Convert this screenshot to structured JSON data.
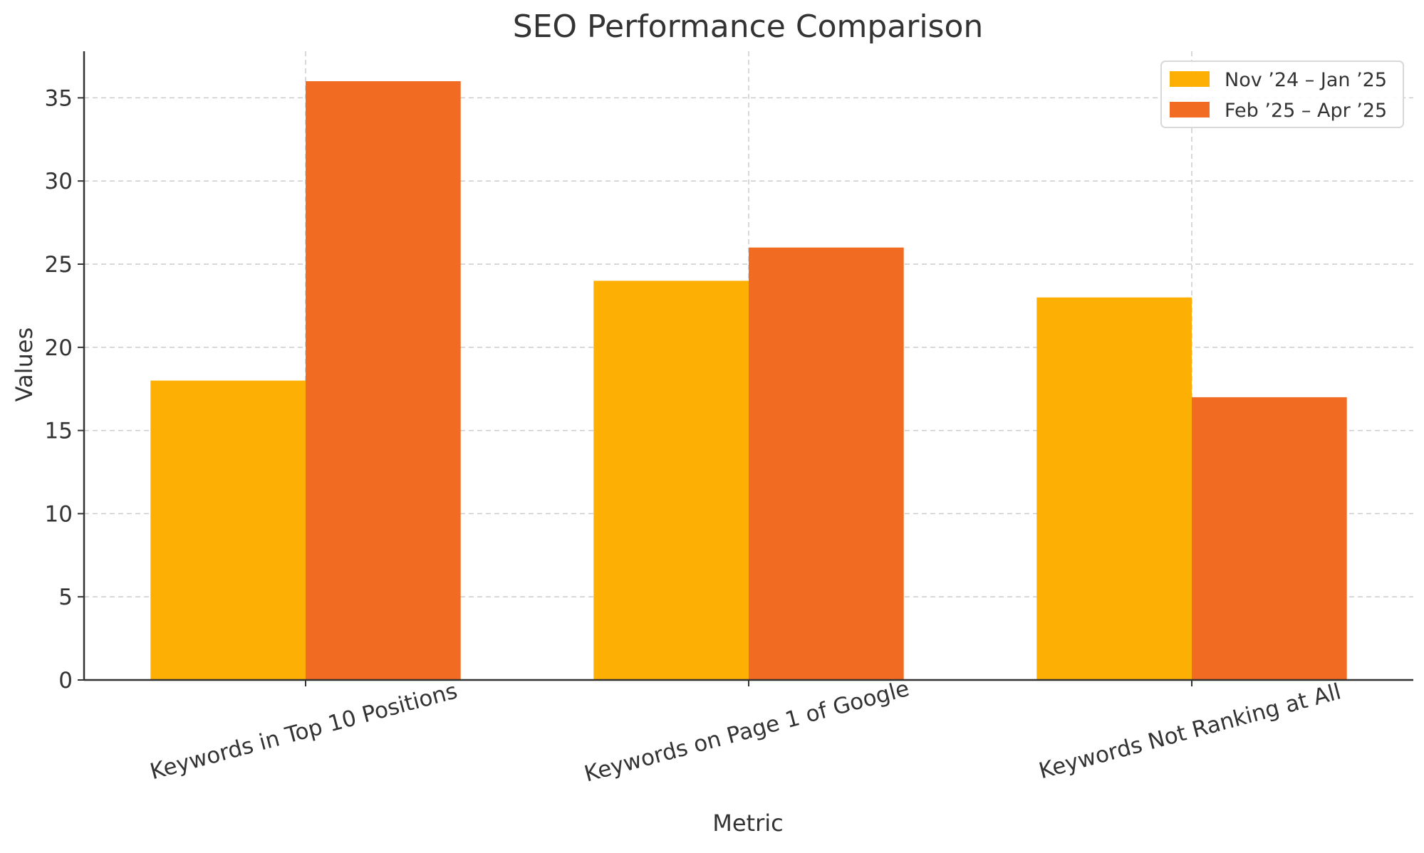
{
  "chart_data": {
    "type": "bar",
    "title": "SEO Performance Comparison",
    "xlabel": "Metric",
    "ylabel": "Values",
    "categories": [
      "Keywords in Top 10 Positions",
      "Keywords on Page 1 of Google",
      "Keywords Not Ranking at All"
    ],
    "series": [
      {
        "name": "Nov ’24 – Jan ’25",
        "values": [
          18,
          24,
          23
        ],
        "color": "#FDAF03"
      },
      {
        "name": "Feb ’25 – Apr ’25",
        "values": [
          36,
          26,
          17
        ],
        "color": "#F26B22"
      }
    ],
    "ylim": [
      0,
      37.8
    ],
    "yticks": [
      0,
      5,
      10,
      15,
      20,
      25,
      30,
      35
    ],
    "grid": true,
    "legend_position": "top-right"
  }
}
